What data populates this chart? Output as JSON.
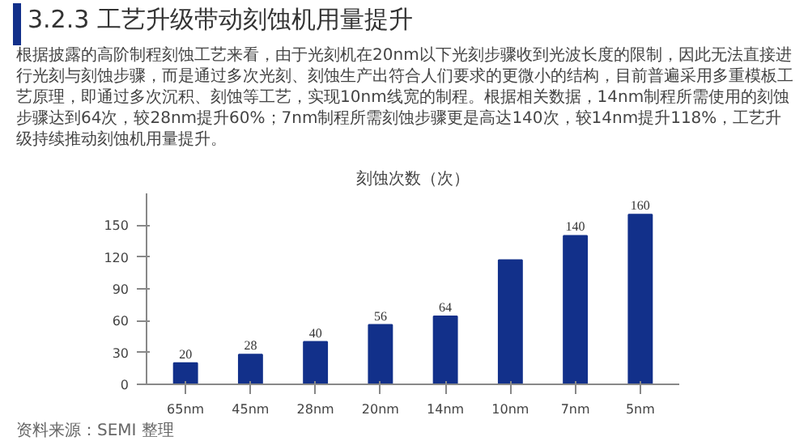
{
  "chart_data": {
    "type": "bar",
    "title": "3.2.3 工艺升级带动刻蚀机用量提升",
    "subtitle": "刻蚀次数（次）",
    "annotations": [
      "根据披露的高阶制程刻蚀工艺来看，由于光刻机在20nm以下光刻步骤收到光波长度的限制，因此无法直接进行光刻与刻蚀步骤，而是通过多次光刻、刻蚀生产出符合人们要求的更微小的结构，目前普遍采用多重模板工艺原理，即通过多次沉积、刻蚀等工艺，实现10nm线宽的制程。根据相关数据，14nm制程所需使用的刻蚀步骤达到64次，较28nm提升60%；7nm制程所需刻蚀步骤更是高达140次，较14nm提升118%，工艺升级持续推动刻蚀机用量提升。",
      "资料来源：SEMI 整理"
    ],
    "categories": [
      "65nm",
      "45nm",
      "28nm",
      "20nm",
      "14nm",
      "10nm",
      "7nm",
      "5nm"
    ],
    "values": [
      20,
      28,
      40,
      56,
      64,
      117,
      140,
      160
    ],
    "value_labels": [
      "20",
      "28",
      "40",
      "56",
      "64",
      null,
      "140",
      "160"
    ],
    "color": "#12308a",
    "ylim": [
      0,
      180
    ],
    "yticks": [
      0,
      30,
      60,
      90,
      120,
      150
    ],
    "grid": false
  }
}
